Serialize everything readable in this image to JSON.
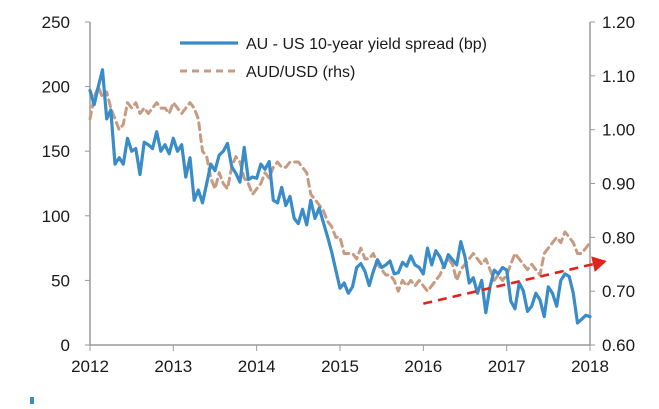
{
  "chart_data": {
    "type": "line",
    "title": "",
    "xlabel": "",
    "ylabel": "",
    "x_ticks": [
      "2012",
      "2013",
      "2014",
      "2015",
      "2016",
      "2017",
      "2018"
    ],
    "xlim": [
      2012.0,
      2018.0
    ],
    "ylim_left": [
      0,
      250
    ],
    "yticks_left": [
      "0",
      "50",
      "100",
      "150",
      "200",
      "250"
    ],
    "ylim_right": [
      0.6,
      1.2
    ],
    "yticks_right": [
      "0.60",
      "0.70",
      "0.80",
      "0.90",
      "1.00",
      "1.10",
      "1.20"
    ],
    "legend": {
      "position": "top-center",
      "entries": [
        "AU - US 10-year yield spread (bp)",
        "AUD/USD (rhs)"
      ]
    },
    "colors": {
      "spread": "#3a8cc8",
      "audusd": "#c79a82",
      "trend": "#e0231d",
      "axis": "#9a9a9a"
    },
    "series": [
      {
        "name": "AU - US 10-year yield spread (bp)",
        "axis": "left",
        "style": "solid",
        "x": [
          2012.0,
          2012.05,
          2012.1,
          2012.15,
          2012.2,
          2012.25,
          2012.3,
          2012.35,
          2012.4,
          2012.45,
          2012.5,
          2012.55,
          2012.6,
          2012.65,
          2012.7,
          2012.75,
          2012.8,
          2012.85,
          2012.9,
          2012.95,
          2013.0,
          2013.05,
          2013.1,
          2013.15,
          2013.2,
          2013.25,
          2013.3,
          2013.35,
          2013.4,
          2013.45,
          2013.5,
          2013.55,
          2013.6,
          2013.65,
          2013.7,
          2013.75,
          2013.8,
          2013.85,
          2013.9,
          2013.95,
          2014.0,
          2014.05,
          2014.1,
          2014.15,
          2014.2,
          2014.25,
          2014.3,
          2014.35,
          2014.4,
          2014.45,
          2014.5,
          2014.55,
          2014.6,
          2014.65,
          2014.7,
          2014.75,
          2014.8,
          2014.85,
          2014.9,
          2014.95,
          2015.0,
          2015.05,
          2015.1,
          2015.15,
          2015.2,
          2015.25,
          2015.3,
          2015.35,
          2015.4,
          2015.45,
          2015.5,
          2015.55,
          2015.6,
          2015.65,
          2015.7,
          2015.75,
          2015.8,
          2015.85,
          2015.9,
          2015.95,
          2016.0,
          2016.05,
          2016.1,
          2016.15,
          2016.2,
          2016.25,
          2016.3,
          2016.35,
          2016.4,
          2016.45,
          2016.5,
          2016.55,
          2016.6,
          2016.65,
          2016.7,
          2016.75,
          2016.8,
          2016.85,
          2016.9,
          2016.95,
          2017.0,
          2017.05,
          2017.1,
          2017.15,
          2017.2,
          2017.25,
          2017.3,
          2017.35,
          2017.4,
          2017.45,
          2017.5,
          2017.55,
          2017.6,
          2017.65,
          2017.7,
          2017.75,
          2017.8,
          2017.85,
          2017.9,
          2017.95,
          2018.0
        ],
        "values": [
          197,
          186,
          200,
          213,
          175,
          182,
          140,
          145,
          140,
          160,
          150,
          152,
          132,
          157,
          155,
          152,
          165,
          150,
          155,
          148,
          160,
          150,
          155,
          130,
          145,
          112,
          120,
          110,
          125,
          140,
          135,
          147,
          150,
          156,
          138,
          133,
          126,
          153,
          128,
          130,
          129,
          140,
          136,
          142,
          112,
          110,
          122,
          108,
          115,
          98,
          94,
          105,
          93,
          112,
          98,
          106,
          95,
          84,
          72,
          58,
          44,
          48,
          40,
          45,
          60,
          63,
          57,
          46,
          57,
          66,
          60,
          62,
          65,
          55,
          56,
          64,
          61,
          69,
          62,
          60,
          55,
          75,
          62,
          73,
          68,
          60,
          70,
          66,
          62,
          80,
          68,
          48,
          52,
          40,
          50,
          25,
          45,
          58,
          55,
          60,
          58,
          34,
          28,
          48,
          42,
          26,
          30,
          40,
          35,
          22,
          45,
          40,
          30,
          50,
          55,
          53,
          40,
          17,
          20,
          23,
          22
        ]
      },
      {
        "name": "AUD/USD (rhs)",
        "axis": "right",
        "style": "dashed",
        "x": [
          2012.0,
          2012.05,
          2012.1,
          2012.15,
          2012.2,
          2012.25,
          2012.3,
          2012.35,
          2012.4,
          2012.45,
          2012.5,
          2012.55,
          2012.6,
          2012.65,
          2012.7,
          2012.75,
          2012.8,
          2012.85,
          2012.9,
          2012.95,
          2013.0,
          2013.05,
          2013.1,
          2013.15,
          2013.2,
          2013.25,
          2013.3,
          2013.35,
          2013.4,
          2013.45,
          2013.5,
          2013.55,
          2013.6,
          2013.65,
          2013.7,
          2013.75,
          2013.8,
          2013.85,
          2013.9,
          2013.95,
          2014.0,
          2014.05,
          2014.1,
          2014.15,
          2014.2,
          2014.25,
          2014.3,
          2014.35,
          2014.4,
          2014.45,
          2014.5,
          2014.55,
          2014.6,
          2014.65,
          2014.7,
          2014.75,
          2014.8,
          2014.85,
          2014.9,
          2014.95,
          2015.0,
          2015.05,
          2015.1,
          2015.15,
          2015.2,
          2015.25,
          2015.3,
          2015.35,
          2015.4,
          2015.45,
          2015.5,
          2015.55,
          2015.6,
          2015.65,
          2015.7,
          2015.75,
          2015.8,
          2015.85,
          2015.9,
          2015.95,
          2016.0,
          2016.05,
          2016.1,
          2016.15,
          2016.2,
          2016.25,
          2016.3,
          2016.35,
          2016.4,
          2016.45,
          2016.5,
          2016.55,
          2016.6,
          2016.65,
          2016.7,
          2016.75,
          2016.8,
          2016.85,
          2016.9,
          2016.95,
          2017.0,
          2017.05,
          2017.1,
          2017.15,
          2017.2,
          2017.25,
          2017.3,
          2017.35,
          2017.4,
          2017.45,
          2017.5,
          2017.55,
          2017.6,
          2017.65,
          2017.7,
          2017.75,
          2017.8,
          2017.85,
          2017.9,
          2017.95,
          2018.0
        ],
        "values": [
          1.02,
          1.06,
          1.08,
          1.06,
          1.07,
          1.04,
          1.02,
          1.0,
          1.01,
          1.05,
          1.04,
          1.05,
          1.03,
          1.04,
          1.03,
          1.04,
          1.05,
          1.04,
          1.04,
          1.03,
          1.05,
          1.04,
          1.03,
          1.04,
          1.05,
          1.04,
          1.02,
          0.96,
          0.95,
          0.91,
          0.89,
          0.92,
          0.9,
          0.89,
          0.93,
          0.95,
          0.94,
          0.91,
          0.9,
          0.88,
          0.89,
          0.9,
          0.92,
          0.91,
          0.93,
          0.94,
          0.93,
          0.93,
          0.94,
          0.94,
          0.94,
          0.93,
          0.92,
          0.88,
          0.87,
          0.86,
          0.85,
          0.83,
          0.82,
          0.8,
          0.8,
          0.77,
          0.77,
          0.77,
          0.76,
          0.78,
          0.76,
          0.76,
          0.77,
          0.75,
          0.74,
          0.73,
          0.73,
          0.72,
          0.7,
          0.72,
          0.71,
          0.72,
          0.71,
          0.72,
          0.71,
          0.7,
          0.71,
          0.72,
          0.73,
          0.75,
          0.76,
          0.75,
          0.72,
          0.74,
          0.75,
          0.76,
          0.77,
          0.76,
          0.75,
          0.76,
          0.74,
          0.72,
          0.73,
          0.72,
          0.73,
          0.75,
          0.77,
          0.76,
          0.75,
          0.74,
          0.75,
          0.74,
          0.73,
          0.77,
          0.78,
          0.79,
          0.8,
          0.79,
          0.81,
          0.8,
          0.79,
          0.77,
          0.77,
          0.78,
          0.79
        ]
      }
    ],
    "annotation": {
      "type": "arrow",
      "style": "dashed",
      "color": "#e0231d",
      "from": {
        "x": 2016.0,
        "y": 32
      },
      "to": {
        "x": 2018.2,
        "y": 65
      }
    }
  }
}
